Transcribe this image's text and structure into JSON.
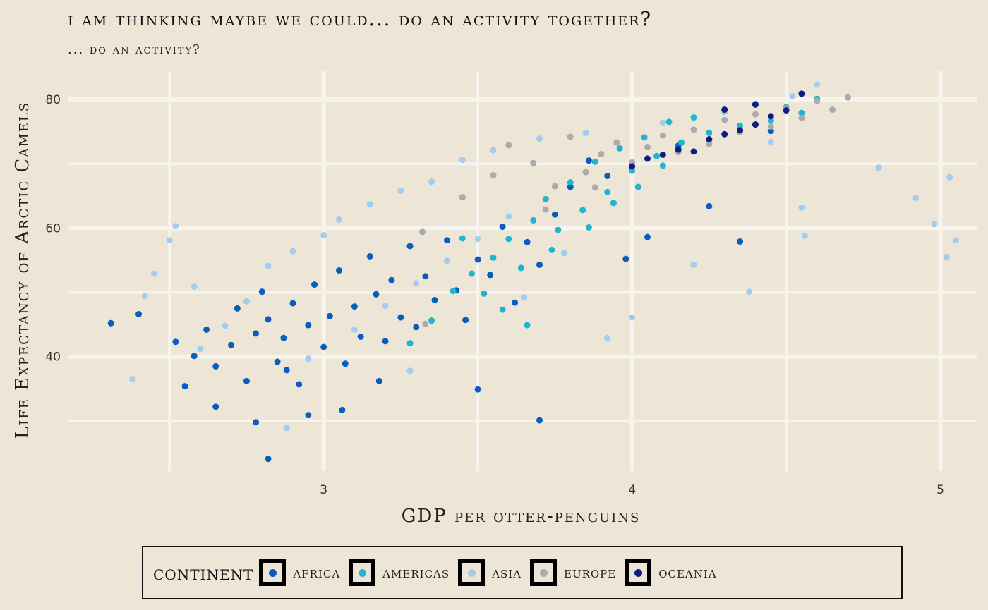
{
  "chart_data": {
    "type": "scatter",
    "title": "I am thinking maybe we could... do an activity together?",
    "subtitle": "... do an activity?",
    "xlabel": "GDP per otter-penguins",
    "ylabel": "Life Expectancy of Arctic Camels",
    "xlim": [
      2.17,
      5.12
    ],
    "ylim": [
      22.2,
      84.5
    ],
    "x_ticks": [
      3,
      4,
      5
    ],
    "y_ticks": [
      40,
      60,
      80
    ],
    "grid": true,
    "legend_position": "bottom",
    "legend_title": "continent",
    "series": [
      {
        "name": "Africa",
        "color": "#0b5cbf",
        "points": [
          [
            2.31,
            45.2
          ],
          [
            2.4,
            46.6
          ],
          [
            2.52,
            42.3
          ],
          [
            2.58,
            40.1
          ],
          [
            2.62,
            44.2
          ],
          [
            2.65,
            38.5
          ],
          [
            2.7,
            41.8
          ],
          [
            2.72,
            47.5
          ],
          [
            2.75,
            36.2
          ],
          [
            2.78,
            43.6
          ],
          [
            2.8,
            50.1
          ],
          [
            2.82,
            45.8
          ],
          [
            2.85,
            39.2
          ],
          [
            2.87,
            42.9
          ],
          [
            2.9,
            48.3
          ],
          [
            2.92,
            35.7
          ],
          [
            2.95,
            44.9
          ],
          [
            2.97,
            51.2
          ],
          [
            3.0,
            41.5
          ],
          [
            3.02,
            46.3
          ],
          [
            3.05,
            53.4
          ],
          [
            3.07,
            38.9
          ],
          [
            3.1,
            47.8
          ],
          [
            3.12,
            43.1
          ],
          [
            3.15,
            55.6
          ],
          [
            3.17,
            49.7
          ],
          [
            3.2,
            42.4
          ],
          [
            3.22,
            51.9
          ],
          [
            3.25,
            46.1
          ],
          [
            3.28,
            57.2
          ],
          [
            3.3,
            44.6
          ],
          [
            3.33,
            52.5
          ],
          [
            3.36,
            48.8
          ],
          [
            3.4,
            58.1
          ],
          [
            3.43,
            50.3
          ],
          [
            3.46,
            45.7
          ],
          [
            3.5,
            55.1
          ],
          [
            3.54,
            52.7
          ],
          [
            3.58,
            60.2
          ],
          [
            3.62,
            48.4
          ],
          [
            3.66,
            57.8
          ],
          [
            3.7,
            54.3
          ],
          [
            3.75,
            62.1
          ],
          [
            3.8,
            66.4
          ],
          [
            3.86,
            70.5
          ],
          [
            3.92,
            68.1
          ],
          [
            3.98,
            55.2
          ],
          [
            4.05,
            58.6
          ],
          [
            4.15,
            72.8
          ],
          [
            4.25,
            63.4
          ],
          [
            4.35,
            57.9
          ],
          [
            4.45,
            75.1
          ],
          [
            2.65,
            32.2
          ],
          [
            2.78,
            29.8
          ],
          [
            2.82,
            24.1
          ],
          [
            2.95,
            30.9
          ],
          [
            3.06,
            31.7
          ],
          [
            3.7,
            30.1
          ],
          [
            3.5,
            34.9
          ],
          [
            2.55,
            35.4
          ],
          [
            2.88,
            37.9
          ],
          [
            3.18,
            36.2
          ]
        ]
      },
      {
        "name": "Americas",
        "color": "#1fb4cf",
        "points": [
          [
            3.28,
            42.1
          ],
          [
            3.35,
            45.6
          ],
          [
            3.42,
            50.2
          ],
          [
            3.48,
            52.9
          ],
          [
            3.55,
            55.4
          ],
          [
            3.6,
            58.3
          ],
          [
            3.64,
            53.8
          ],
          [
            3.68,
            61.2
          ],
          [
            3.72,
            64.5
          ],
          [
            3.76,
            59.7
          ],
          [
            3.8,
            67.1
          ],
          [
            3.84,
            62.8
          ],
          [
            3.88,
            70.3
          ],
          [
            3.92,
            65.6
          ],
          [
            3.96,
            72.4
          ],
          [
            4.0,
            68.9
          ],
          [
            4.04,
            74.1
          ],
          [
            4.08,
            71.2
          ],
          [
            4.12,
            76.5
          ],
          [
            4.16,
            73.3
          ],
          [
            4.2,
            77.2
          ],
          [
            4.25,
            74.8
          ],
          [
            4.3,
            78.1
          ],
          [
            4.35,
            75.9
          ],
          [
            4.4,
            79.3
          ],
          [
            4.45,
            76.7
          ],
          [
            4.5,
            78.8
          ],
          [
            4.55,
            77.9
          ],
          [
            4.6,
            80.1
          ],
          [
            3.58,
            47.3
          ],
          [
            3.66,
            44.9
          ],
          [
            3.74,
            56.6
          ],
          [
            3.86,
            60.1
          ],
          [
            3.94,
            63.9
          ],
          [
            4.02,
            66.4
          ],
          [
            4.1,
            69.7
          ],
          [
            3.45,
            58.4
          ],
          [
            3.52,
            49.8
          ]
        ]
      },
      {
        "name": "Asia",
        "color": "#a2cdf2",
        "points": [
          [
            2.38,
            36.5
          ],
          [
            2.45,
            52.9
          ],
          [
            2.5,
            58.1
          ],
          [
            2.52,
            60.3
          ],
          [
            2.6,
            41.2
          ],
          [
            2.68,
            44.8
          ],
          [
            2.75,
            48.6
          ],
          [
            2.82,
            54.1
          ],
          [
            2.88,
            28.9
          ],
          [
            2.9,
            56.4
          ],
          [
            2.95,
            39.7
          ],
          [
            3.0,
            58.9
          ],
          [
            3.05,
            61.3
          ],
          [
            3.1,
            44.2
          ],
          [
            3.15,
            63.7
          ],
          [
            3.2,
            47.9
          ],
          [
            3.25,
            65.8
          ],
          [
            3.3,
            51.4
          ],
          [
            3.35,
            67.2
          ],
          [
            3.4,
            54.9
          ],
          [
            3.45,
            70.6
          ],
          [
            3.5,
            58.3
          ],
          [
            3.55,
            72.1
          ],
          [
            3.6,
            61.8
          ],
          [
            3.65,
            49.2
          ],
          [
            3.7,
            73.9
          ],
          [
            3.78,
            56.1
          ],
          [
            3.85,
            74.8
          ],
          [
            3.92,
            42.9
          ],
          [
            4.0,
            46.1
          ],
          [
            4.1,
            76.4
          ],
          [
            4.2,
            54.3
          ],
          [
            4.3,
            78.2
          ],
          [
            4.38,
            50.1
          ],
          [
            4.45,
            73.4
          ],
          [
            4.52,
            80.5
          ],
          [
            4.55,
            63.2
          ],
          [
            4.6,
            82.3
          ],
          [
            4.8,
            69.4
          ],
          [
            4.92,
            64.7
          ],
          [
            4.98,
            60.6
          ],
          [
            5.02,
            55.5
          ],
          [
            5.03,
            67.9
          ],
          [
            5.05,
            58.1
          ],
          [
            4.56,
            58.8
          ],
          [
            3.28,
            37.8
          ],
          [
            2.42,
            49.4
          ],
          [
            2.58,
            50.9
          ]
        ]
      },
      {
        "name": "Europe",
        "color": "#a9abae",
        "points": [
          [
            3.32,
            59.4
          ],
          [
            3.45,
            64.8
          ],
          [
            3.55,
            68.2
          ],
          [
            3.6,
            72.9
          ],
          [
            3.68,
            70.1
          ],
          [
            3.75,
            66.5
          ],
          [
            3.8,
            74.2
          ],
          [
            3.85,
            68.7
          ],
          [
            3.9,
            71.5
          ],
          [
            3.95,
            73.3
          ],
          [
            4.0,
            70.2
          ],
          [
            4.05,
            72.6
          ],
          [
            4.1,
            74.4
          ],
          [
            4.15,
            71.8
          ],
          [
            4.2,
            75.3
          ],
          [
            4.25,
            73.1
          ],
          [
            4.3,
            76.8
          ],
          [
            4.35,
            74.9
          ],
          [
            4.4,
            77.7
          ],
          [
            4.45,
            75.8
          ],
          [
            4.5,
            78.6
          ],
          [
            4.55,
            77.1
          ],
          [
            4.6,
            79.8
          ],
          [
            4.65,
            78.4
          ],
          [
            4.7,
            80.3
          ],
          [
            3.33,
            45.1
          ],
          [
            3.72,
            62.9
          ],
          [
            3.88,
            66.3
          ]
        ]
      },
      {
        "name": "Oceania",
        "color": "#0f1b80",
        "points": [
          [
            4.0,
            69.6
          ],
          [
            4.05,
            70.8
          ],
          [
            4.1,
            71.4
          ],
          [
            4.15,
            72.2
          ],
          [
            4.2,
            71.9
          ],
          [
            4.25,
            73.8
          ],
          [
            4.3,
            74.6
          ],
          [
            4.35,
            75.2
          ],
          [
            4.4,
            76.1
          ],
          [
            4.45,
            77.4
          ],
          [
            4.5,
            78.3
          ],
          [
            4.55,
            80.9
          ],
          [
            4.3,
            78.4
          ],
          [
            4.4,
            79.2
          ]
        ]
      }
    ]
  }
}
